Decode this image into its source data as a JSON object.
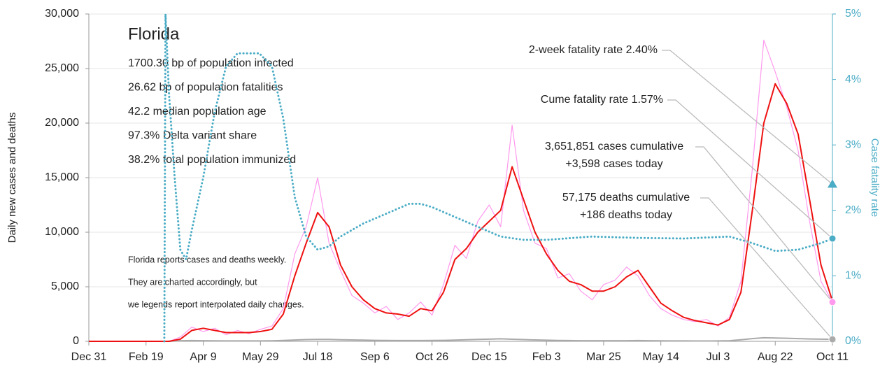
{
  "chart_data": {
    "type": "line",
    "title": "Florida",
    "info": [
      "1700.30 bp of population infected",
      "26.62 bp of population fatalities",
      "42.2 median population age",
      "97.3% Delta variant share",
      "38.2% total population immunized"
    ],
    "notes": [
      "Florida reports cases and deaths weekly.",
      "They are charted accordingly, but",
      "we legends report interpolated daily changes."
    ],
    "y_label": "Daily new cases and deaths",
    "y2_label": "Case fatality rate",
    "xlim": [
      0,
      650
    ],
    "xticks": [
      {
        "value": 0,
        "label": "Dec 31"
      },
      {
        "value": 50,
        "label": "Feb 19"
      },
      {
        "value": 100,
        "label": "Apr 9"
      },
      {
        "value": 150,
        "label": "May 29"
      },
      {
        "value": 200,
        "label": "Jul 18"
      },
      {
        "value": 250,
        "label": "Sep 6"
      },
      {
        "value": 300,
        "label": "Oct 26"
      },
      {
        "value": 350,
        "label": "Dec 15"
      },
      {
        "value": 400,
        "label": "Feb 3"
      },
      {
        "value": 450,
        "label": "Mar 25"
      },
      {
        "value": 500,
        "label": "May 14"
      },
      {
        "value": 550,
        "label": "Jul 3"
      },
      {
        "value": 600,
        "label": "Aug 22"
      },
      {
        "value": 650,
        "label": "Oct 11"
      }
    ],
    "ylim": [
      0,
      30000
    ],
    "yticks": [
      0,
      {
        "value": 5000,
        "label": "5,000"
      },
      {
        "value": 10000,
        "label": "10,000"
      },
      {
        "value": 15000,
        "label": "15,000"
      },
      {
        "value": 20000,
        "label": "20,000"
      },
      {
        "value": 25000,
        "label": "25,000"
      },
      {
        "value": 30000,
        "label": "30,000"
      }
    ],
    "y2lim": [
      0,
      5
    ],
    "y2ticks": [
      {
        "value": 0,
        "label": "0%"
      },
      {
        "value": 1,
        "label": "1%"
      },
      {
        "value": 2,
        "label": "2%"
      },
      {
        "value": 3,
        "label": "3%"
      },
      {
        "value": 4,
        "label": "4%"
      },
      {
        "value": 5,
        "label": "5%"
      }
    ],
    "grid": true,
    "y2_color": "#4bacc6",
    "series": [
      {
        "color": "#ff99ee",
        "width": 1.2,
        "x": [
          0,
          10,
          20,
          30,
          40,
          50,
          60,
          70,
          80,
          90,
          100,
          110,
          120,
          130,
          140,
          150,
          160,
          170,
          180,
          190,
          200,
          210,
          220,
          230,
          240,
          250,
          260,
          270,
          280,
          290,
          300,
          310,
          320,
          330,
          340,
          350,
          360,
          370,
          380,
          390,
          400,
          410,
          420,
          430,
          440,
          450,
          460,
          470,
          480,
          490,
          500,
          510,
          520,
          530,
          540,
          550,
          560,
          570,
          580,
          590,
          600,
          610,
          620,
          630,
          640,
          650
        ],
        "values": [
          0,
          0,
          0,
          0,
          0,
          0,
          0,
          0,
          400,
          1300,
          900,
          1200,
          600,
          1000,
          700,
          1100,
          1400,
          3000,
          8000,
          10500,
          15000,
          9000,
          6500,
          4200,
          3500,
          2600,
          3200,
          2000,
          2600,
          3600,
          2400,
          5200,
          8800,
          7600,
          11000,
          12500,
          10500,
          19800,
          12000,
          9000,
          8500,
          5800,
          6200,
          4600,
          3800,
          5200,
          5600,
          6800,
          6000,
          4200,
          3000,
          2400,
          2000,
          1800,
          2000,
          1400,
          2200,
          5500,
          15800,
          27600,
          24700,
          21500,
          17500,
          11000,
          5500,
          3598
        ]
      },
      {
        "color": "#aaaaaa",
        "width": 2,
        "x": [
          0,
          10,
          20,
          30,
          40,
          50,
          60,
          70,
          80,
          90,
          100,
          110,
          120,
          130,
          140,
          150,
          160,
          170,
          180,
          190,
          200,
          210,
          220,
          230,
          240,
          250,
          260,
          270,
          280,
          290,
          300,
          310,
          320,
          330,
          340,
          350,
          360,
          370,
          380,
          390,
          400,
          410,
          420,
          430,
          440,
          450,
          460,
          470,
          480,
          490,
          500,
          510,
          520,
          530,
          540,
          550,
          560,
          570,
          580,
          590,
          600,
          610,
          620,
          630,
          640,
          650
        ],
        "values": [
          0,
          0,
          0,
          0,
          0,
          0,
          0,
          0,
          60,
          70,
          60,
          50,
          40,
          40,
          40,
          40,
          50,
          80,
          120,
          160,
          180,
          170,
          150,
          130,
          110,
          90,
          80,
          70,
          70,
          70,
          80,
          90,
          110,
          140,
          170,
          200,
          230,
          190,
          160,
          130,
          100,
          80,
          70,
          60,
          60,
          60,
          60,
          60,
          70,
          60,
          50,
          40,
          40,
          30,
          30,
          40,
          60,
          150,
          250,
          330,
          300,
          280,
          250,
          220,
          200,
          186
        ]
      },
      {
        "color": "#ee1111",
        "width": 2,
        "x": [
          0,
          10,
          20,
          30,
          40,
          50,
          60,
          70,
          80,
          90,
          100,
          110,
          120,
          130,
          140,
          150,
          160,
          170,
          180,
          190,
          200,
          210,
          220,
          230,
          240,
          250,
          260,
          270,
          280,
          290,
          300,
          310,
          320,
          330,
          340,
          350,
          360,
          370,
          380,
          390,
          400,
          410,
          420,
          430,
          440,
          450,
          460,
          470,
          480,
          490,
          500,
          510,
          520,
          530,
          540,
          550,
          560,
          570,
          580,
          590,
          600,
          610,
          620,
          630,
          640,
          650
        ],
        "values": [
          0,
          0,
          0,
          0,
          0,
          0,
          0,
          0,
          200,
          1000,
          1200,
          1000,
          800,
          800,
          800,
          900,
          1100,
          2500,
          6000,
          9000,
          11800,
          10500,
          7000,
          5000,
          3800,
          3000,
          2600,
          2500,
          2300,
          3000,
          2800,
          4500,
          7500,
          8500,
          10000,
          11000,
          12000,
          16000,
          13000,
          10000,
          8000,
          6500,
          5500,
          5200,
          4600,
          4600,
          5000,
          5900,
          6500,
          5000,
          3500,
          2800,
          2200,
          1900,
          1700,
          1500,
          2000,
          4500,
          12000,
          20000,
          23600,
          21800,
          19000,
          13000,
          7000,
          3700
        ]
      },
      {
        "color": "#4bacc6",
        "width": 3,
        "axis": "y2",
        "style": "dotted",
        "x": [
          66,
          67,
          70,
          75,
          80,
          85,
          90,
          100,
          110,
          120,
          130,
          149,
          160,
          170,
          180,
          190,
          200,
          210,
          220,
          240,
          260,
          280,
          290,
          300,
          320,
          340,
          360,
          380,
          400,
          440,
          480,
          520,
          560,
          580,
          600,
          620,
          640,
          650
        ],
        "values": [
          0,
          5,
          3.8,
          2.5,
          1.4,
          1.25,
          1.7,
          2.5,
          3.5,
          4.2,
          4.4,
          4.4,
          4.2,
          3.4,
          2.2,
          1.6,
          1.4,
          1.45,
          1.6,
          1.8,
          1.95,
          2.1,
          2.1,
          2.05,
          1.9,
          1.75,
          1.6,
          1.55,
          1.55,
          1.6,
          1.58,
          1.57,
          1.6,
          1.5,
          1.38,
          1.4,
          1.5,
          1.57
        ]
      }
    ],
    "annotations": [
      {
        "text": [
          "2-week fatality rate 2.40%"
        ],
        "value": 2.4,
        "axis": "y2",
        "shape": "triangle",
        "color": "#4bacc6"
      },
      {
        "text": [
          "Cume fatality rate 1.57%"
        ],
        "value": 1.57,
        "axis": "y2",
        "shape": "circle",
        "color": "#4bacc6"
      },
      {
        "text": [
          "3,651,851 cases cumulative",
          "+3,598 cases today"
        ],
        "value": 3598,
        "shape": "circle",
        "color": "#ff99ee"
      },
      {
        "text": [
          "57,175 deaths cumulative",
          "+186 deaths today"
        ],
        "value": 186,
        "shape": "circle",
        "color": "#aaaaaa"
      }
    ]
  }
}
